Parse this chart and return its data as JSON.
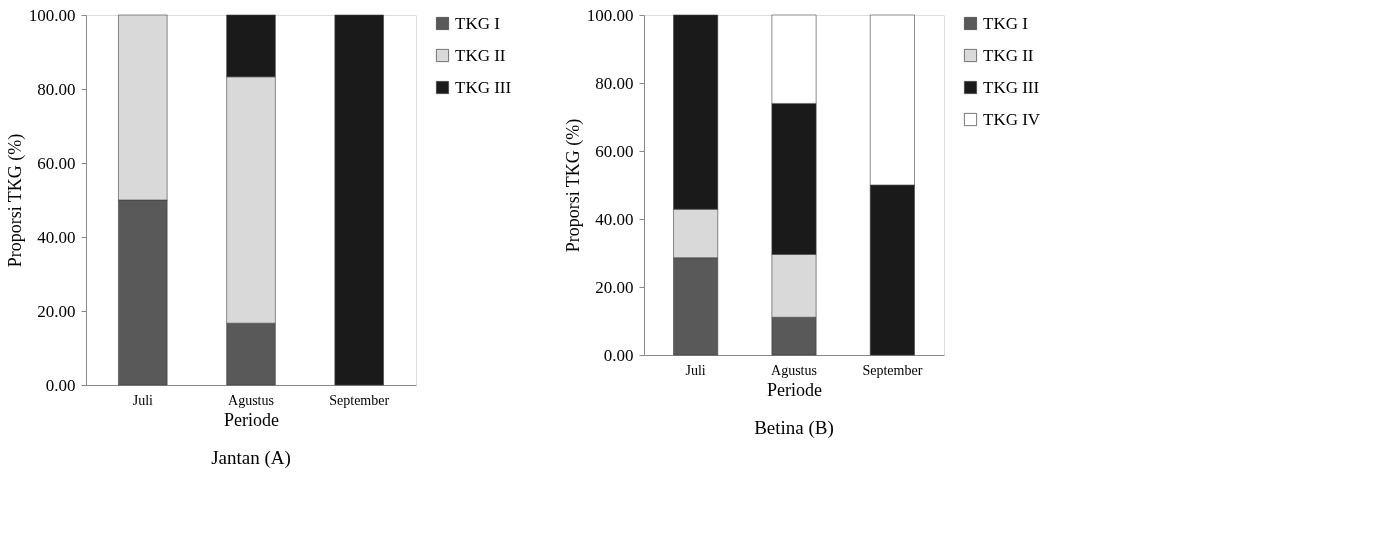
{
  "chart_data": [
    {
      "type": "bar",
      "stacked": true,
      "title": "Jantan (A)",
      "xlabel": "Periode",
      "ylabel": "Proporsi TKG (%)",
      "categories": [
        "Juli",
        "Agustus",
        "September"
      ],
      "ylim": [
        0,
        100
      ],
      "yticks": [
        {
          "value": 0,
          "label": "0.00"
        },
        {
          "value": 20,
          "label": "20.00"
        },
        {
          "value": 40,
          "label": "40.00"
        },
        {
          "value": 60,
          "label": "60.00"
        },
        {
          "value": 80,
          "label": "80.00"
        },
        {
          "value": 100,
          "label": "100.00"
        }
      ],
      "grid": false,
      "legend": "right",
      "series": [
        {
          "name": "TKG I",
          "color": "#595959",
          "values": [
            50,
            16.7,
            null
          ]
        },
        {
          "name": "TKG II",
          "color": "#d9d9d9",
          "values": [
            50,
            66.6,
            null
          ]
        },
        {
          "name": "TKG III",
          "color": "#1a1a1a",
          "values": [
            null,
            16.7,
            100
          ]
        }
      ]
    },
    {
      "type": "bar",
      "stacked": true,
      "title": "Betina (B)",
      "xlabel": "Periode",
      "ylabel": "Proporsi TKG (%)",
      "categories": [
        "Juli",
        "Agustus",
        "September"
      ],
      "ylim": [
        0,
        100
      ],
      "yticks": [
        {
          "value": 0,
          "label": "0.00"
        },
        {
          "value": 20,
          "label": "20.00"
        },
        {
          "value": 40,
          "label": "40.00"
        },
        {
          "value": 60,
          "label": "60.00"
        },
        {
          "value": 80,
          "label": "80.00"
        },
        {
          "value": 100,
          "label": "100.00"
        }
      ],
      "grid": false,
      "legend": "right",
      "series": [
        {
          "name": "TKG I",
          "color": "#595959",
          "values": [
            28.6,
            11.1,
            null
          ]
        },
        {
          "name": "TKG II",
          "color": "#d9d9d9",
          "values": [
            14.3,
            18.5,
            null
          ]
        },
        {
          "name": "TKG III",
          "color": "#1a1a1a",
          "values": [
            57.1,
            44.4,
            50
          ]
        },
        {
          "name": "TKG IV",
          "color": "#ffffff",
          "values": [
            null,
            26,
            50
          ]
        }
      ]
    }
  ]
}
